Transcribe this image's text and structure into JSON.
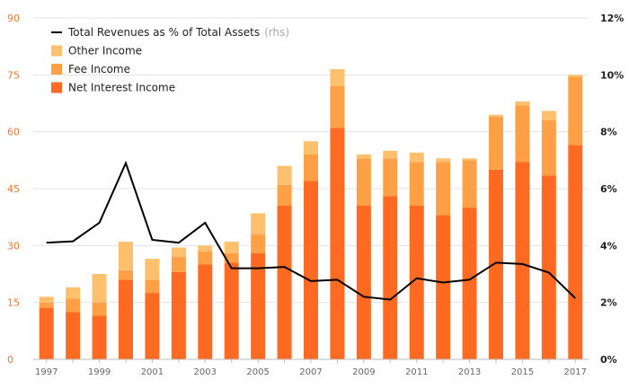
{
  "chart_data": {
    "type": "bar",
    "stacked": true,
    "years": [
      1997,
      1998,
      1999,
      2000,
      2001,
      2002,
      2003,
      2004,
      2005,
      2006,
      2007,
      2008,
      2009,
      2010,
      2011,
      2012,
      2013,
      2014,
      2015,
      2016,
      2017
    ],
    "x_tick_labels": [
      "1997",
      "1999",
      "2001",
      "2003",
      "2005",
      "2007",
      "2009",
      "2011",
      "2013",
      "2015",
      "2017"
    ],
    "y_left": {
      "min": 0,
      "max": 90,
      "ticks": [
        "0",
        "15",
        "30",
        "45",
        "60",
        "75",
        "90"
      ]
    },
    "y_right": {
      "min": 0,
      "max": 12,
      "ticks": [
        "0%",
        "2%",
        "4%",
        "6%",
        "8%",
        "10%",
        "12%"
      ]
    },
    "series": [
      {
        "name": "Net Interest Income",
        "color": "#ff6a22",
        "values": [
          13.5,
          12.5,
          11.5,
          21,
          17.5,
          23,
          25,
          25.5,
          28,
          40.5,
          47,
          61,
          40.5,
          43,
          40.5,
          38,
          40,
          50,
          52,
          48.5,
          56.5
        ]
      },
      {
        "name": "Fee Income",
        "color": "#ffa046",
        "values": [
          1.5,
          3.5,
          3.5,
          2.5,
          3.5,
          4,
          3.5,
          2.5,
          5,
          5.5,
          7,
          11,
          12.5,
          10,
          11.5,
          14,
          12.5,
          14,
          15,
          14.5,
          18
        ]
      },
      {
        "name": "Other Income",
        "color": "#ffc06e",
        "values": [
          1.5,
          3,
          7.5,
          7.5,
          5.5,
          2.5,
          1.5,
          3,
          5.5,
          5,
          3.5,
          4.5,
          1,
          2,
          2.5,
          1,
          0.5,
          0.5,
          1,
          2.5,
          0.5
        ]
      }
    ],
    "line": {
      "name": "Total Revenues as % of Total Assets",
      "name_suffix": "(rhs)",
      "color": "#000000",
      "values": [
        4.1,
        4.15,
        4.8,
        6.9,
        4.2,
        4.1,
        4.8,
        3.2,
        3.2,
        3.25,
        2.75,
        2.8,
        2.2,
        2.1,
        2.85,
        2.7,
        2.8,
        3.4,
        3.35,
        3.05,
        2.15
      ]
    },
    "legend": {
      "position": "top-left",
      "items": [
        {
          "label": "Total Revenues as % of Total Assets",
          "suffix": "(rhs)",
          "kind": "line",
          "color": "#000000"
        },
        {
          "label": "Other Income",
          "kind": "box",
          "color": "#ffc06e"
        },
        {
          "label": "Fee Income",
          "kind": "box",
          "color": "#ffa046"
        },
        {
          "label": "Net Interest Income",
          "kind": "box",
          "color": "#ff6a22"
        }
      ]
    },
    "grid": true
  }
}
